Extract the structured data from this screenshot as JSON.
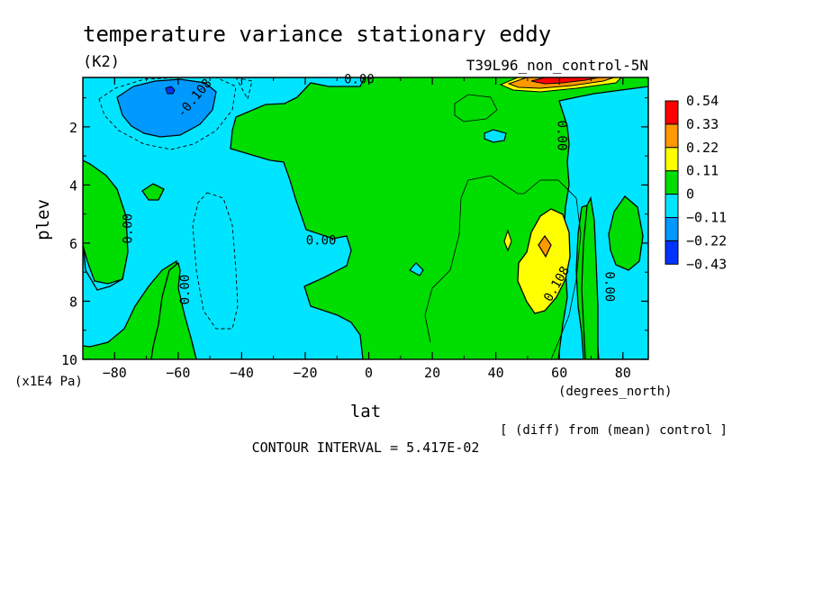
{
  "chart_data": {
    "type": "heatmap",
    "title": "temperature variance stationary eddy",
    "units": "(K2)",
    "run_label": "T39L96_non_control-5N",
    "xlabel": "lat",
    "x_units": "(degrees_north)",
    "ylabel": "plev",
    "y_units": "(x1E4 Pa)",
    "xlim": [
      -90,
      88
    ],
    "ylim": [
      10,
      0.3
    ],
    "x_ticks": [
      -80,
      -60,
      -40,
      -20,
      0,
      20,
      40,
      60,
      80
    ],
    "x_tick_labels": [
      "−80",
      "−60",
      "−40",
      "−20",
      "0",
      "20",
      "40",
      "60",
      "80"
    ],
    "y_ticks": [
      2,
      4,
      6,
      8,
      10
    ],
    "y_tick_labels": [
      "2",
      "4",
      "6",
      "8",
      "10"
    ],
    "contour_labels": [
      {
        "text": "0.00",
        "lat": -3,
        "plev": 0.35,
        "rot": 0
      },
      {
        "text": "-0.108",
        "lat": -55,
        "plev": 1.0,
        "rot": -50
      },
      {
        "text": "0.00",
        "lat": 61,
        "plev": 2.3,
        "rot": 90
      },
      {
        "text": "0.00",
        "lat": -76,
        "plev": 5.5,
        "rot": -90
      },
      {
        "text": "0.00",
        "lat": -15,
        "plev": 5.9,
        "rot": 0
      },
      {
        "text": "0.00",
        "lat": -58,
        "plev": 7.6,
        "rot": -90
      },
      {
        "text": "0.108",
        "lat": 59,
        "plev": 7.4,
        "rot": -60
      },
      {
        "text": "0.00",
        "lat": 76,
        "plev": 7.5,
        "rot": 90
      }
    ],
    "colorbar": {
      "levels": [
        "0.54",
        "0.33",
        "0.22",
        "0.11",
        "0",
        "−0.11",
        "−0.22",
        "−0.43"
      ],
      "colors": [
        "#ff0000",
        "#ff9900",
        "#ffff00",
        "#00dd00",
        "#00e5ff",
        "#0099ff",
        "#0033ff"
      ]
    },
    "note": "[ (diff) from (mean) control ]",
    "contour_interval": "CONTOUR INTERVAL = 5.417E-02"
  }
}
